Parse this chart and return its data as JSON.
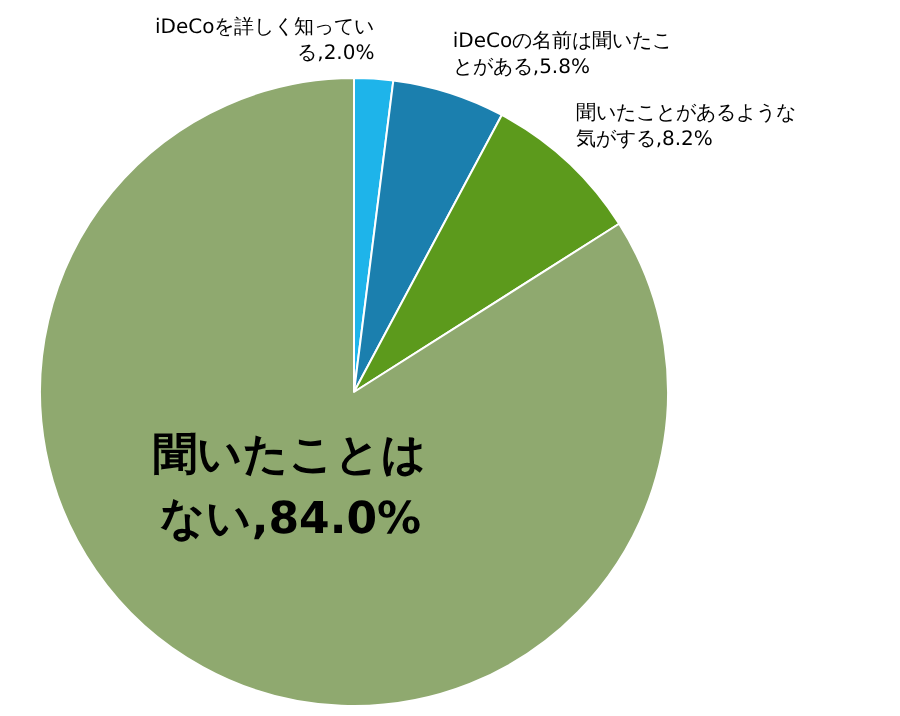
{
  "chart_data": {
    "type": "pie",
    "categories": [
      "iDeCoを詳しく知っている",
      "iDeCoの名前は聞いたことがある",
      "聞いたことがあるような気がする",
      "聞いたことはない"
    ],
    "values": [
      2.0,
      5.8,
      8.2,
      84.0
    ],
    "value_labels": [
      "2.0%",
      "5.8%",
      "8.2%",
      "84.0%"
    ],
    "colors": [
      "#1eb4ea",
      "#1b7fae",
      "#5c9a1c",
      "#8fa96f"
    ]
  }
}
